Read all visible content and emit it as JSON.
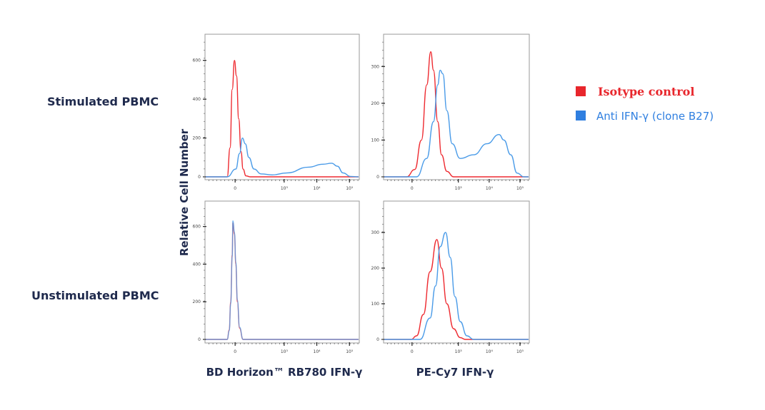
{
  "row_labels": [
    "Stimulated PBMC",
    "Unstimulated PBMC"
  ],
  "y_axis_label": "Relative Cell Number",
  "x_axis_labels": [
    "BD Horizon™ RB780 IFN-γ",
    "PE-Cy7 IFN-γ"
  ],
  "legend": [
    {
      "label": "Isotype control",
      "color": "#e8262c"
    },
    {
      "label": "Anti IFN-γ (clone B27)",
      "color": "#2f7fe0"
    }
  ],
  "colors": {
    "isotype": "#ee2a30",
    "anti": "#4a9be8",
    "text": "#1f2a4d"
  },
  "chart_data": [
    {
      "type": "line",
      "panel": "Stimulated PBMC / BD Horizon RB780 IFN-γ",
      "x_scale": "biexponential",
      "xlim": [
        -260,
        200000
      ],
      "ylim": [
        0,
        720
      ],
      "yticks": [
        0,
        200,
        400,
        600
      ],
      "xticks": [
        {
          "value": 0,
          "label": "0"
        },
        {
          "value": 1000,
          "label": "10³"
        },
        {
          "value": 10000,
          "label": "10⁴"
        },
        {
          "value": 100000,
          "label": "10⁵"
        }
      ],
      "series": [
        {
          "name": "Isotype control",
          "x": [
            -37,
            -23,
            -13,
            -3,
            6,
            16,
            27,
            37,
            53,
            81
          ],
          "y": [
            0,
            150,
            450,
            600,
            520,
            300,
            130,
            40,
            5,
            0
          ]
        },
        {
          "name": "Anti IFN-γ (clone B27)",
          "x": [
            -37,
            3,
            20,
            34,
            49,
            71,
            111,
            193,
            426,
            1190,
            5550,
            15400,
            28500,
            42600,
            64000,
            108000
          ],
          "y": [
            0,
            40,
            120,
            200,
            170,
            100,
            40,
            15,
            10,
            20,
            50,
            65,
            70,
            55,
            20,
            2
          ]
        }
      ]
    },
    {
      "type": "line",
      "panel": "Stimulated PBMC / PE-Cy7 IFN-γ",
      "x_scale": "biexponential",
      "xlim": [
        -260,
        200000
      ],
      "ylim": [
        0,
        380
      ],
      "yticks": [
        0,
        100,
        200,
        300
      ],
      "xticks": [
        {
          "value": 0,
          "label": "0"
        },
        {
          "value": 1000,
          "label": "10³"
        },
        {
          "value": 10000,
          "label": "10⁴"
        },
        {
          "value": 100000,
          "label": "10⁵"
        }
      ],
      "series": [
        {
          "name": "Isotype control",
          "x": [
            -26,
            13,
            48,
            84,
            120,
            150,
            210,
            281,
            422,
            700
          ],
          "y": [
            0,
            20,
            100,
            250,
            340,
            290,
            150,
            60,
            15,
            0
          ]
        },
        {
          "name": "Anti IFN-γ (clone B27)",
          "x": [
            22,
            84,
            150,
            210,
            254,
            311,
            422,
            630,
            1150,
            3150,
            8500,
            21000,
            30000,
            50000,
            81000,
            134000
          ],
          "y": [
            0,
            50,
            150,
            250,
            290,
            280,
            180,
            90,
            50,
            60,
            90,
            115,
            100,
            60,
            10,
            0
          ]
        }
      ]
    },
    {
      "type": "line",
      "panel": "Unstimulated PBMC / BD Horizon RB780 IFN-γ",
      "x_scale": "biexponential",
      "xlim": [
        -260,
        200000
      ],
      "ylim": [
        0,
        720
      ],
      "yticks": [
        0,
        200,
        400,
        600
      ],
      "xticks": [
        {
          "value": 0,
          "label": "0"
        },
        {
          "value": 1000,
          "label": "10³"
        },
        {
          "value": 10000,
          "label": "10⁴"
        },
        {
          "value": 100000,
          "label": "10⁵"
        }
      ],
      "series": [
        {
          "name": "Isotype control",
          "x": [
            -37,
            -27,
            -20,
            -13,
            -10,
            -3,
            3,
            10,
            20,
            37
          ],
          "y": [
            0,
            50,
            200,
            450,
            620,
            560,
            400,
            200,
            60,
            0
          ]
        },
        {
          "name": "Anti IFN-γ (clone B27)",
          "x": [
            -37,
            -27,
            -20,
            -13,
            -10,
            -3,
            3,
            10,
            20,
            37
          ],
          "y": [
            0,
            45,
            190,
            440,
            630,
            570,
            410,
            210,
            65,
            0
          ]
        }
      ]
    },
    {
      "type": "line",
      "panel": "Unstimulated PBMC / PE-Cy7 IFN-γ",
      "x_scale": "biexponential",
      "xlim": [
        -260,
        200000
      ],
      "ylim": [
        0,
        380
      ],
      "yticks": [
        0,
        100,
        200,
        300
      ],
      "xticks": [
        {
          "value": 0,
          "label": "0"
        },
        {
          "value": 1000,
          "label": "10³"
        },
        {
          "value": 10000,
          "label": "10⁴"
        },
        {
          "value": 100000,
          "label": "10⁵"
        }
      ],
      "series": [
        {
          "name": "Isotype control",
          "x": [
            -4,
            22,
            60,
            113,
            196,
            281,
            422,
            700,
            1150,
            1700
          ],
          "y": [
            0,
            10,
            70,
            190,
            280,
            200,
            100,
            30,
            5,
            0
          ]
        },
        {
          "name": "Anti IFN-γ (clone B27)",
          "x": [
            40,
            113,
            177,
            254,
            383,
            543,
            775,
            1150,
            1900,
            3150
          ],
          "y": [
            0,
            60,
            150,
            260,
            300,
            230,
            120,
            50,
            10,
            0
          ]
        }
      ]
    }
  ]
}
